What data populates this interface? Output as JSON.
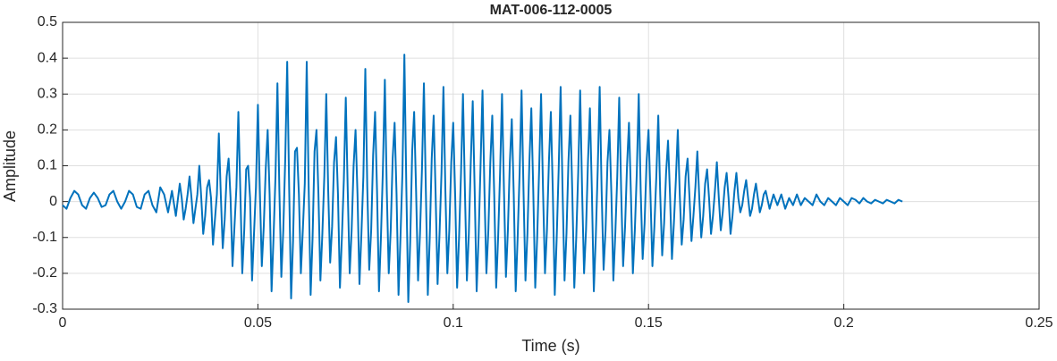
{
  "chart_data": {
    "type": "line",
    "title": "MAT-006-112-0005",
    "x_label": "Time (s)",
    "y_label": "Amplitude",
    "color": "#0072bd",
    "grid": true,
    "xlim": [
      0,
      0.25
    ],
    "xticks": [
      0,
      0.05,
      0.1,
      0.15,
      0.2,
      0.25
    ],
    "ylim": [
      -0.3,
      0.5
    ],
    "yticks": [
      -0.3,
      -0.2,
      -0.1,
      0,
      0.1,
      0.2,
      0.3,
      0.4,
      0.5
    ],
    "x": [
      0,
      0.001,
      0.002,
      0.003,
      0.004,
      0.005,
      0.006,
      0.007,
      0.008,
      0.009,
      0.01,
      0.011,
      0.012,
      0.013,
      0.014,
      0.015,
      0.016,
      0.017,
      0.018,
      0.019,
      0.02,
      0.021,
      0.022,
      0.023,
      0.024,
      0.025,
      0.026,
      0.027,
      0.028,
      0.029,
      0.03,
      0.0305,
      0.031,
      0.0315,
      0.032,
      0.0325,
      0.033,
      0.0335,
      0.034,
      0.0345,
      0.035,
      0.0355,
      0.036,
      0.0365,
      0.037,
      0.0375,
      0.038,
      0.0385,
      0.039,
      0.0395,
      0.04,
      0.0405,
      0.041,
      0.0415,
      0.042,
      0.0425,
      0.043,
      0.0435,
      0.044,
      0.0445,
      0.045,
      0.0455,
      0.046,
      0.0465,
      0.047,
      0.0475,
      0.048,
      0.0485,
      0.049,
      0.0495,
      0.05,
      0.0505,
      0.051,
      0.0515,
      0.052,
      0.0525,
      0.053,
      0.0535,
      0.054,
      0.0545,
      0.055,
      0.0555,
      0.056,
      0.0565,
      0.057,
      0.0575,
      0.058,
      0.0585,
      0.059,
      0.0595,
      0.06,
      0.0605,
      0.061,
      0.0615,
      0.062,
      0.0625,
      0.063,
      0.0635,
      0.064,
      0.0645,
      0.065,
      0.0655,
      0.066,
      0.0665,
      0.067,
      0.0675,
      0.068,
      0.0685,
      0.069,
      0.0695,
      0.07,
      0.0705,
      0.071,
      0.0715,
      0.072,
      0.0725,
      0.073,
      0.0735,
      0.074,
      0.0745,
      0.075,
      0.0755,
      0.076,
      0.0765,
      0.077,
      0.0775,
      0.078,
      0.0785,
      0.079,
      0.0795,
      0.08,
      0.0805,
      0.081,
      0.0815,
      0.082,
      0.0825,
      0.083,
      0.0835,
      0.084,
      0.0845,
      0.085,
      0.0855,
      0.086,
      0.0865,
      0.087,
      0.0875,
      0.088,
      0.0885,
      0.089,
      0.0895,
      0.09,
      0.0905,
      0.091,
      0.0915,
      0.092,
      0.0925,
      0.093,
      0.0935,
      0.094,
      0.0945,
      0.095,
      0.0955,
      0.096,
      0.0965,
      0.097,
      0.0975,
      0.098,
      0.0985,
      0.099,
      0.0995,
      0.1,
      0.1005,
      0.101,
      0.1015,
      0.102,
      0.1025,
      0.103,
      0.1035,
      0.104,
      0.1045,
      0.105,
      0.1055,
      0.106,
      0.1065,
      0.107,
      0.1075,
      0.108,
      0.1085,
      0.109,
      0.1095,
      0.11,
      0.1105,
      0.111,
      0.1115,
      0.112,
      0.1125,
      0.113,
      0.1135,
      0.114,
      0.1145,
      0.115,
      0.1155,
      0.116,
      0.1165,
      0.117,
      0.1175,
      0.118,
      0.1185,
      0.119,
      0.1195,
      0.12,
      0.1205,
      0.121,
      0.1215,
      0.122,
      0.1225,
      0.123,
      0.1235,
      0.124,
      0.1245,
      0.125,
      0.1255,
      0.126,
      0.1265,
      0.127,
      0.1275,
      0.128,
      0.1285,
      0.129,
      0.1295,
      0.13,
      0.1305,
      0.131,
      0.1315,
      0.132,
      0.1325,
      0.133,
      0.1335,
      0.134,
      0.1345,
      0.135,
      0.1355,
      0.136,
      0.1365,
      0.137,
      0.1375,
      0.138,
      0.1385,
      0.139,
      0.1395,
      0.14,
      0.1405,
      0.141,
      0.1415,
      0.142,
      0.1425,
      0.143,
      0.1435,
      0.144,
      0.1445,
      0.145,
      0.1455,
      0.146,
      0.1465,
      0.147,
      0.1475,
      0.148,
      0.1485,
      0.149,
      0.1495,
      0.15,
      0.1505,
      0.151,
      0.1515,
      0.152,
      0.1525,
      0.153,
      0.1535,
      0.154,
      0.1545,
      0.155,
      0.1555,
      0.156,
      0.1565,
      0.157,
      0.1575,
      0.158,
      0.1585,
      0.159,
      0.1595,
      0.16,
      0.1605,
      0.161,
      0.1615,
      0.162,
      0.1625,
      0.163,
      0.1635,
      0.164,
      0.1645,
      0.165,
      0.1655,
      0.166,
      0.1665,
      0.167,
      0.1675,
      0.168,
      0.1685,
      0.169,
      0.1695,
      0.17,
      0.1705,
      0.171,
      0.1715,
      0.172,
      0.1725,
      0.173,
      0.1735,
      0.174,
      0.1745,
      0.175,
      0.1755,
      0.176,
      0.1765,
      0.177,
      0.1775,
      0.178,
      0.1785,
      0.179,
      0.1795,
      0.18,
      0.181,
      0.182,
      0.183,
      0.184,
      0.185,
      0.186,
      0.187,
      0.188,
      0.189,
      0.19,
      0.191,
      0.192,
      0.193,
      0.194,
      0.195,
      0.196,
      0.197,
      0.198,
      0.199,
      0.2,
      0.201,
      0.202,
      0.203,
      0.204,
      0.205,
      0.206,
      0.207,
      0.208,
      0.209,
      0.21,
      0.211,
      0.212,
      0.213,
      0.214,
      0.215
    ],
    "values": [
      -0.01,
      -0.02,
      0.01,
      0.03,
      0.02,
      -0.01,
      -0.02,
      0.01,
      0.025,
      0.01,
      -0.015,
      -0.01,
      0.02,
      0.03,
      0,
      -0.02,
      0,
      0.03,
      0.02,
      -0.015,
      -0.02,
      0.02,
      0.03,
      -0.01,
      -0.03,
      0.04,
      0.02,
      -0.03,
      0.03,
      -0.04,
      0.05,
      0.01,
      -0.05,
      -0.02,
      0.02,
      0.07,
      0.01,
      -0.06,
      -0.02,
      0.02,
      0.1,
      0.01,
      -0.09,
      -0.04,
      0.04,
      0.06,
      0.01,
      -0.12,
      -0.05,
      0.02,
      0.19,
      0.02,
      -0.13,
      -0.05,
      0.07,
      0.12,
      0.01,
      -0.18,
      -0.07,
      0.04,
      0.25,
      0.03,
      -0.2,
      -0.08,
      0.09,
      0.1,
      0.01,
      -0.22,
      -0.09,
      0.04,
      0.27,
      0.03,
      -0.18,
      -0.07,
      0.09,
      0.2,
      0.02,
      -0.25,
      -0.1,
      0.07,
      0.33,
      0.03,
      -0.21,
      -0.08,
      0.12,
      0.39,
      0.04,
      -0.27,
      -0.11,
      0.14,
      0.15,
      0.02,
      -0.2,
      -0.08,
      0.05,
      0.39,
      0.04,
      -0.26,
      -0.1,
      0.14,
      0.2,
      0.02,
      -0.22,
      -0.09,
      0.07,
      0.3,
      0.03,
      -0.17,
      -0.07,
      0.11,
      0.18,
      0.02,
      -0.24,
      -0.1,
      0.06,
      0.29,
      0.03,
      -0.2,
      -0.08,
      0.1,
      0.2,
      0.02,
      -0.23,
      -0.09,
      0.07,
      0.37,
      0.04,
      -0.19,
      -0.08,
      0.13,
      0.25,
      0.03,
      -0.25,
      -0.1,
      0.09,
      0.34,
      0.03,
      -0.2,
      -0.08,
      0.12,
      0.22,
      0.02,
      -0.26,
      -0.1,
      0.08,
      0.41,
      0.04,
      -0.28,
      -0.11,
      0.14,
      0.25,
      0.03,
      -0.22,
      -0.09,
      0.09,
      0.33,
      0.03,
      -0.26,
      -0.1,
      0.12,
      0.24,
      0.02,
      -0.23,
      -0.09,
      0.08,
      0.32,
      0.03,
      -0.2,
      -0.08,
      0.11,
      0.22,
      0.02,
      -0.24,
      -0.1,
      0.08,
      0.3,
      0.03,
      -0.22,
      -0.09,
      0.11,
      0.28,
      0.03,
      -0.25,
      -0.1,
      0.1,
      0.31,
      0.03,
      -0.2,
      -0.08,
      0.11,
      0.24,
      0.02,
      -0.24,
      -0.1,
      0.08,
      0.3,
      0.03,
      -0.21,
      -0.08,
      0.11,
      0.23,
      0.02,
      -0.25,
      -0.1,
      0.08,
      0.31,
      0.03,
      -0.22,
      -0.09,
      0.11,
      0.26,
      0.03,
      -0.24,
      -0.1,
      0.09,
      0.3,
      0.03,
      -0.2,
      -0.08,
      0.11,
      0.25,
      0.03,
      -0.26,
      -0.1,
      0.09,
      0.32,
      0.03,
      -0.22,
      -0.09,
      0.11,
      0.24,
      0.02,
      -0.24,
      -0.1,
      0.08,
      0.31,
      0.03,
      -0.2,
      -0.08,
      0.11,
      0.26,
      0.03,
      -0.25,
      -0.1,
      0.09,
      0.32,
      0.03,
      -0.19,
      -0.08,
      0.11,
      0.2,
      0.02,
      -0.22,
      -0.09,
      0.07,
      0.29,
      0.03,
      -0.18,
      -0.07,
      0.1,
      0.22,
      0.02,
      -0.2,
      -0.08,
      0.08,
      0.3,
      0.03,
      -0.16,
      -0.06,
      0.11,
      0.2,
      0.02,
      -0.18,
      -0.07,
      0.07,
      0.24,
      0.02,
      -0.15,
      -0.06,
      0.08,
      0.17,
      0.02,
      -0.16,
      -0.06,
      0.06,
      0.2,
      0.02,
      -0.12,
      -0.05,
      0.07,
      0.12,
      0.01,
      -0.11,
      -0.04,
      0.04,
      0.14,
      0.01,
      -0.1,
      -0.04,
      0.05,
      0.09,
      0.01,
      -0.09,
      -0.04,
      0.03,
      0.11,
      0.01,
      -0.08,
      -0.03,
      0.04,
      0.08,
      0.01,
      -0.09,
      -0.04,
      0.03,
      0.08,
      0.01,
      -0.03,
      -0.01,
      0.03,
      0.06,
      0.01,
      -0.04,
      -0.02,
      0.02,
      0.05,
      0.01,
      -0.03,
      -0.01,
      0.02,
      0.03,
      -0.02,
      0.02,
      -0.01,
      0.02,
      -0.02,
      0.01,
      -0.01,
      0.02,
      -0.01,
      0.01,
      0,
      -0.01,
      0.02,
      0,
      -0.01,
      0.01,
      0,
      -0.01,
      0.01,
      0,
      -0.01,
      0.01,
      0.005,
      -0.005,
      0.01,
      0,
      -0.005,
      0.005,
      0,
      -0.005,
      0.005,
      0,
      -0.005,
      0.005,
      0
    ]
  }
}
